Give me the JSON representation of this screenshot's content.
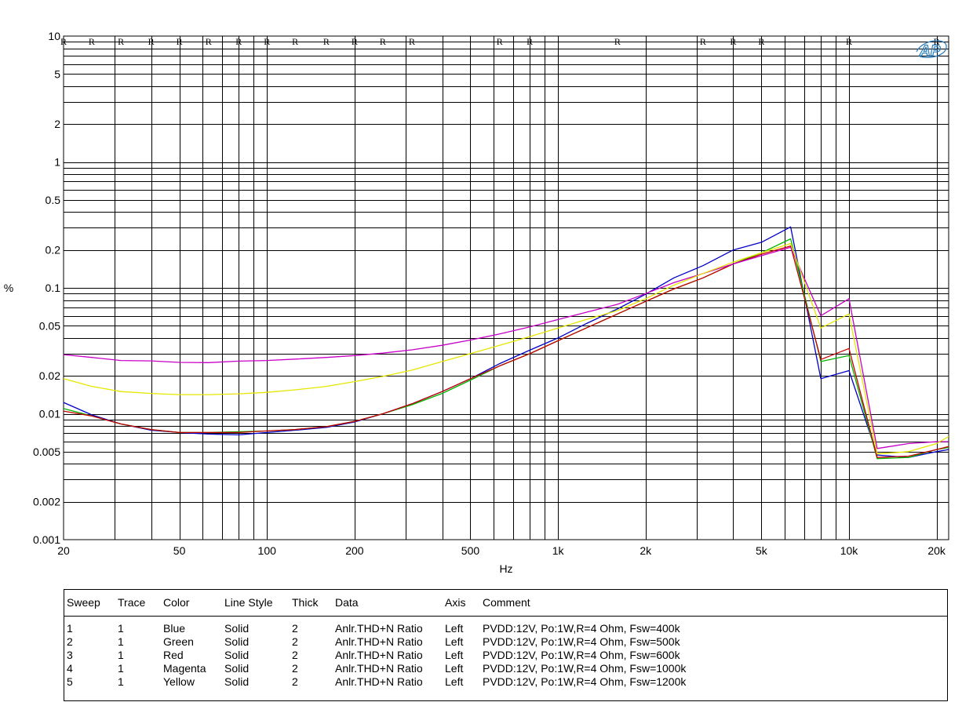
{
  "chart_data": {
    "type": "line",
    "xscale": "log",
    "yscale": "log",
    "xlim": [
      20,
      22000
    ],
    "ylim": [
      0.001,
      10
    ],
    "xlabel": "Hz",
    "ylabel": "%",
    "grid": true,
    "x_ticks": [
      {
        "value": 20,
        "label": "20"
      },
      {
        "value": 50,
        "label": "50"
      },
      {
        "value": 100,
        "label": "100"
      },
      {
        "value": 200,
        "label": "200"
      },
      {
        "value": 500,
        "label": "500"
      },
      {
        "value": 1000,
        "label": "1k"
      },
      {
        "value": 2000,
        "label": "2k"
      },
      {
        "value": 5000,
        "label": "5k"
      },
      {
        "value": 10000,
        "label": "10k"
      },
      {
        "value": 20000,
        "label": "20k"
      }
    ],
    "y_ticks": [
      {
        "value": 10,
        "label": "10"
      },
      {
        "value": 5,
        "label": "5"
      },
      {
        "value": 2,
        "label": "2"
      },
      {
        "value": 1,
        "label": "1"
      },
      {
        "value": 0.5,
        "label": "0.5"
      },
      {
        "value": 0.2,
        "label": "0.2"
      },
      {
        "value": 0.1,
        "label": "0.1"
      },
      {
        "value": 0.05,
        "label": "0.05"
      },
      {
        "value": 0.02,
        "label": "0.02"
      },
      {
        "value": 0.01,
        "label": "0.01"
      },
      {
        "value": 0.005,
        "label": "0.005"
      },
      {
        "value": 0.002,
        "label": "0.002"
      },
      {
        "value": 0.001,
        "label": "0.001"
      }
    ],
    "r_marks": [
      20,
      25,
      31.5,
      40,
      50,
      63,
      80,
      100,
      125,
      160,
      200,
      250,
      315,
      630,
      800,
      1600,
      3150,
      4000,
      5000,
      10000,
      20000
    ],
    "r_label": "R",
    "series": [
      {
        "color": "#0000c8",
        "x": [
          20,
          25,
          31.5,
          40,
          50,
          63,
          80,
          100,
          125,
          160,
          200,
          250,
          315,
          400,
          500,
          630,
          800,
          1000,
          1250,
          1600,
          2000,
          2500,
          3150,
          4000,
          5000,
          6300,
          8000,
          10000,
          12500,
          16000,
          20000,
          22000
        ],
        "y": [
          0.0123,
          0.0098,
          0.0083,
          0.0074,
          0.0071,
          0.0069,
          0.0068,
          0.0071,
          0.0074,
          0.0078,
          0.0086,
          0.01,
          0.012,
          0.015,
          0.019,
          0.025,
          0.032,
          0.04,
          0.052,
          0.068,
          0.089,
          0.12,
          0.15,
          0.2,
          0.23,
          0.305,
          0.019,
          0.022,
          0.0047,
          0.0045,
          0.005,
          0.0052
        ]
      },
      {
        "color": "#00b400",
        "x": [
          20,
          25,
          31.5,
          40,
          50,
          63,
          80,
          100,
          125,
          160,
          200,
          250,
          315,
          400,
          500,
          630,
          800,
          1000,
          1250,
          1600,
          2000,
          2500,
          3150,
          4000,
          5000,
          6300,
          8000,
          10000,
          12500,
          16000,
          20000,
          22000
        ],
        "y": [
          0.011,
          0.0096,
          0.0083,
          0.0075,
          0.0071,
          0.0071,
          0.0072,
          0.0073,
          0.0075,
          0.0079,
          0.0087,
          0.01,
          0.0118,
          0.0145,
          0.0185,
          0.024,
          0.03,
          0.038,
          0.048,
          0.062,
          0.078,
          0.098,
          0.12,
          0.155,
          0.19,
          0.245,
          0.026,
          0.029,
          0.0044,
          0.0045,
          0.0052,
          0.0054
        ]
      },
      {
        "color": "#c80000",
        "x": [
          20,
          25,
          31.5,
          40,
          50,
          63,
          80,
          100,
          125,
          160,
          200,
          250,
          315,
          400,
          500,
          630,
          800,
          1000,
          1250,
          1600,
          2000,
          2500,
          3150,
          4000,
          5000,
          6300,
          8000,
          10000,
          12500,
          16000,
          20000,
          22000
        ],
        "y": [
          0.0105,
          0.0096,
          0.0083,
          0.0075,
          0.0071,
          0.0071,
          0.0071,
          0.0073,
          0.0075,
          0.0079,
          0.0087,
          0.01,
          0.012,
          0.015,
          0.019,
          0.024,
          0.03,
          0.038,
          0.048,
          0.062,
          0.078,
          0.098,
          0.12,
          0.155,
          0.185,
          0.215,
          0.027,
          0.033,
          0.0045,
          0.0046,
          0.0052,
          0.0055
        ]
      },
      {
        "color": "#c800c8",
        "x": [
          20,
          25,
          31.5,
          40,
          50,
          63,
          80,
          100,
          125,
          160,
          200,
          250,
          315,
          400,
          500,
          630,
          800,
          1000,
          1250,
          1600,
          2000,
          2500,
          3150,
          4000,
          5000,
          6300,
          8000,
          10000,
          12500,
          16000,
          20000,
          22000
        ],
        "y": [
          0.0295,
          0.028,
          0.0265,
          0.0263,
          0.0256,
          0.0255,
          0.0262,
          0.0265,
          0.0272,
          0.028,
          0.029,
          0.0303,
          0.0322,
          0.035,
          0.0385,
          0.043,
          0.049,
          0.056,
          0.064,
          0.074,
          0.09,
          0.11,
          0.13,
          0.155,
          0.18,
          0.21,
          0.06,
          0.082,
          0.0053,
          0.0058,
          0.006,
          0.006
        ]
      },
      {
        "color": "#e6e600",
        "x": [
          20,
          25,
          31.5,
          40,
          50,
          63,
          80,
          100,
          125,
          160,
          200,
          250,
          315,
          400,
          500,
          630,
          800,
          1000,
          1250,
          1600,
          2000,
          2500,
          3150,
          4000,
          5000,
          6300,
          8000,
          10000,
          12500,
          16000,
          20000,
          22000
        ],
        "y": [
          0.019,
          0.0165,
          0.015,
          0.0145,
          0.0142,
          0.0142,
          0.0144,
          0.0148,
          0.0155,
          0.0165,
          0.018,
          0.0198,
          0.0222,
          0.026,
          0.03,
          0.035,
          0.041,
          0.048,
          0.056,
          0.066,
          0.082,
          0.105,
          0.13,
          0.16,
          0.19,
          0.225,
          0.048,
          0.062,
          0.0048,
          0.005,
          0.0058,
          0.0066
        ]
      }
    ]
  },
  "legend_table": {
    "headers": [
      "Sweep",
      "Trace",
      "Color",
      "Line Style",
      "Thick",
      "Data",
      "Axis",
      "Comment"
    ],
    "rows": [
      {
        "sweep": "1",
        "trace": "1",
        "color": "Blue",
        "style": "Solid",
        "thick": "2",
        "data": "Anlr.THD+N Ratio",
        "axis": "Left",
        "comment": "PVDD:12V, Po:1W,R=4 Ohm, Fsw=400k"
      },
      {
        "sweep": "2",
        "trace": "1",
        "color": "Green",
        "style": "Solid",
        "thick": "2",
        "data": "Anlr.THD+N Ratio",
        "axis": "Left",
        "comment": "PVDD:12V, Po:1W,R=4 Ohm, Fsw=500k"
      },
      {
        "sweep": "3",
        "trace": "1",
        "color": "Red",
        "style": "Solid",
        "thick": "2",
        "data": "Anlr.THD+N Ratio",
        "axis": "Left",
        "comment": "PVDD:12V, Po:1W,R=4 Ohm, Fsw=600k"
      },
      {
        "sweep": "4",
        "trace": "1",
        "color": "Magenta",
        "style": "Solid",
        "thick": "2",
        "data": "Anlr.THD+N Ratio",
        "axis": "Left",
        "comment": "PVDD:12V, Po:1W,R=4 Ohm, Fsw=1000k"
      },
      {
        "sweep": "5",
        "trace": "1",
        "color": "Yellow",
        "style": "Solid",
        "thick": "2",
        "data": "Anlr.THD+N Ratio",
        "axis": "Left",
        "comment": "PVDD:12V, Po:1W,R=4 Ohm, Fsw=1200k"
      }
    ]
  },
  "logo": {
    "text": "AP",
    "color": "#2a7fc0"
  }
}
